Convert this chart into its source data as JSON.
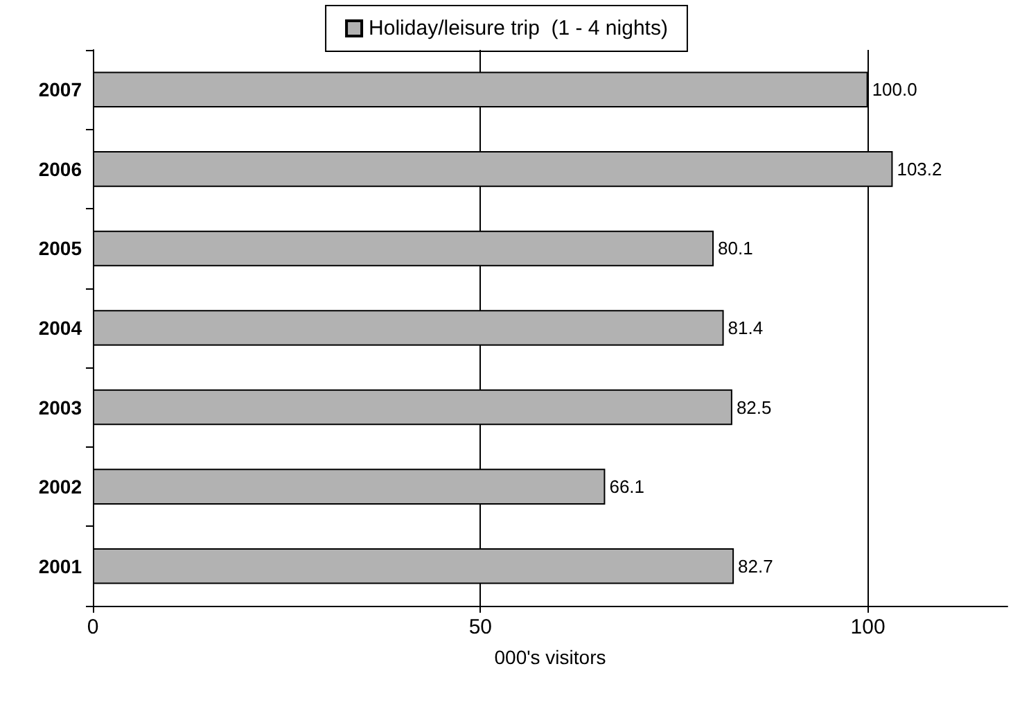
{
  "chart_data": {
    "type": "bar",
    "orientation": "horizontal",
    "xlabel": "000's visitors",
    "categories": [
      "2007",
      "2006",
      "2005",
      "2004",
      "2003",
      "2002",
      "2001"
    ],
    "series": [
      {
        "name": "Holiday/leisure trip  (1 - 4 nights)",
        "color": "#b2b2b2",
        "values": [
          100.0,
          103.2,
          80.1,
          81.4,
          82.5,
          66.1,
          82.7
        ],
        "value_labels": [
          "100.0",
          "103.2",
          "80.1",
          "81.4",
          "82.5",
          "66.1",
          "82.7"
        ]
      }
    ],
    "xlim": [
      0,
      118
    ],
    "xticks": [
      0,
      50,
      100
    ],
    "grid": "x",
    "legend": "top"
  }
}
